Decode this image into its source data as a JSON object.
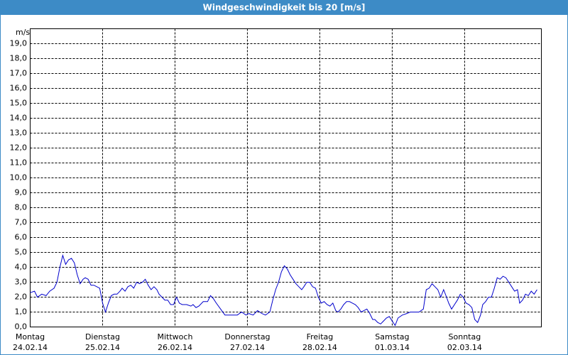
{
  "chart_data": {
    "type": "line",
    "title": "Windgeschwindigkeit bis 20 [m/s]",
    "y_label": "m/s",
    "xlim": [
      0,
      7.06
    ],
    "xticks": [
      {
        "value": 0,
        "label": "Montag"
      },
      {
        "value": 1,
        "label": "Dienstag"
      },
      {
        "value": 2,
        "label": "Mittwoch"
      },
      {
        "value": 3,
        "label": "Donnerstag"
      },
      {
        "value": 4,
        "label": "Freitag"
      },
      {
        "value": 5,
        "label": "Samstag"
      },
      {
        "value": 6,
        "label": "Sonntag"
      }
    ],
    "xtick_dates": [
      "24.02.14",
      "25.02.14",
      "26.02.14",
      "27.02.14",
      "28.02.14",
      "01.03.14",
      "02.03.14"
    ],
    "ylim": [
      0,
      20
    ],
    "yticks": [
      {
        "value": 0,
        "label": "0,0"
      },
      {
        "value": 1,
        "label": "1,0"
      },
      {
        "value": 2,
        "label": "2,0"
      },
      {
        "value": 3,
        "label": "3,0"
      },
      {
        "value": 4,
        "label": "4,0"
      },
      {
        "value": 5,
        "label": "5,0"
      },
      {
        "value": 6,
        "label": "6,0"
      },
      {
        "value": 7,
        "label": "7,0"
      },
      {
        "value": 8,
        "label": "8,0"
      },
      {
        "value": 9,
        "label": "9,0"
      },
      {
        "value": 10,
        "label": "10,0"
      },
      {
        "value": 11,
        "label": "11,0"
      },
      {
        "value": 12,
        "label": "12,0"
      },
      {
        "value": 13,
        "label": "13,0"
      },
      {
        "value": 14,
        "label": "14,0"
      },
      {
        "value": 15,
        "label": "15,0"
      },
      {
        "value": 16,
        "label": "16,0"
      },
      {
        "value": 17,
        "label": "17,0"
      },
      {
        "value": 18,
        "label": "18,0"
      },
      {
        "value": 19,
        "label": "19,0"
      }
    ],
    "grid": true,
    "color": "#0000cc",
    "x": [
      0,
      0.06,
      0.1,
      0.16,
      0.22,
      0.27,
      0.33,
      0.37,
      0.41,
      0.45,
      0.49,
      0.53,
      0.57,
      0.61,
      0.65,
      0.69,
      0.73,
      0.76,
      0.8,
      0.84,
      0.88,
      0.92,
      0.96,
      1.0,
      1.04,
      1.08,
      1.12,
      1.16,
      1.2,
      1.24,
      1.27,
      1.31,
      1.35,
      1.39,
      1.43,
      1.47,
      1.51,
      1.55,
      1.59,
      1.63,
      1.67,
      1.71,
      1.75,
      1.78,
      1.82,
      1.86,
      1.9,
      1.94,
      1.98,
      2.02,
      2.06,
      2.1,
      2.16,
      2.22,
      2.25,
      2.29,
      2.33,
      2.39,
      2.45,
      2.49,
      2.53,
      2.57,
      2.63,
      2.69,
      2.75,
      2.8,
      2.86,
      2.92,
      2.98,
      3.02,
      3.08,
      3.14,
      3.2,
      3.25,
      3.31,
      3.35,
      3.39,
      3.43,
      3.47,
      3.51,
      3.55,
      3.59,
      3.63,
      3.67,
      3.71,
      3.75,
      3.78,
      3.82,
      3.86,
      3.9,
      3.94,
      3.98,
      4.02,
      4.06,
      4.1,
      4.14,
      4.18,
      4.22,
      4.25,
      4.29,
      4.33,
      4.37,
      4.41,
      4.45,
      4.49,
      4.53,
      4.57,
      4.61,
      4.65,
      4.69,
      4.73,
      4.76,
      4.8,
      4.84,
      4.88,
      4.92,
      4.96,
      5.0,
      5.04,
      5.08,
      5.14,
      5.2,
      5.25,
      5.31,
      5.37,
      5.43,
      5.47,
      5.51,
      5.55,
      5.59,
      5.63,
      5.67,
      5.71,
      5.75,
      5.78,
      5.82,
      5.86,
      5.9,
      5.94,
      5.98,
      6.02,
      6.06,
      6.1,
      6.14,
      6.18,
      6.22,
      6.25,
      6.29,
      6.33,
      6.37,
      6.41,
      6.45,
      6.49,
      6.53,
      6.57,
      6.61,
      6.65,
      6.69,
      6.73,
      6.76,
      6.8,
      6.84,
      6.88,
      6.92,
      6.96,
      7.0
    ],
    "values": [
      2.3,
      2.4,
      2.0,
      2.2,
      2.1,
      2.4,
      2.6,
      3.0,
      4.0,
      4.8,
      4.2,
      4.5,
      4.6,
      4.3,
      3.5,
      2.9,
      3.2,
      3.3,
      3.2,
      2.8,
      2.8,
      2.7,
      2.6,
      1.6,
      1.0,
      1.6,
      2.1,
      2.2,
      2.2,
      2.4,
      2.6,
      2.4,
      2.7,
      2.8,
      2.6,
      3.0,
      2.9,
      3.0,
      3.2,
      2.8,
      2.5,
      2.7,
      2.5,
      2.2,
      2.0,
      1.8,
      1.8,
      1.5,
      1.5,
      2.0,
      1.6,
      1.5,
      1.5,
      1.4,
      1.5,
      1.3,
      1.4,
      1.7,
      1.7,
      2.1,
      1.9,
      1.6,
      1.2,
      0.8,
      0.8,
      0.8,
      0.8,
      1.0,
      0.8,
      0.9,
      0.8,
      1.1,
      0.9,
      0.8,
      1.0,
      1.8,
      2.5,
      3.0,
      3.7,
      4.1,
      3.9,
      3.5,
      3.2,
      2.9,
      2.7,
      2.5,
      2.7,
      3.0,
      3.0,
      2.7,
      2.6,
      2.0,
      1.6,
      1.7,
      1.5,
      1.4,
      1.6,
      1.1,
      1.0,
      1.2,
      1.5,
      1.7,
      1.7,
      1.6,
      1.5,
      1.3,
      1.0,
      1.1,
      1.2,
      0.9,
      0.5,
      0.5,
      0.3,
      0.2,
      0.4,
      0.6,
      0.7,
      0.4,
      0.1,
      0.6,
      0.8,
      0.9,
      1.0,
      1.0,
      1.0,
      1.2,
      2.5,
      2.6,
      2.9,
      2.7,
      2.5,
      2.0,
      2.5,
      2.0,
      1.6,
      1.2,
      1.5,
      1.8,
      2.2,
      2.0,
      1.6,
      1.5,
      1.3,
      0.5,
      0.3,
      0.8,
      1.5,
      1.7,
      2.0,
      2.0,
      2.6,
      3.3,
      3.2,
      3.4,
      3.3,
      3.0,
      2.7,
      2.4,
      2.5,
      1.6,
      1.8,
      2.2,
      2.1,
      2.4,
      2.2,
      2.5
    ]
  }
}
